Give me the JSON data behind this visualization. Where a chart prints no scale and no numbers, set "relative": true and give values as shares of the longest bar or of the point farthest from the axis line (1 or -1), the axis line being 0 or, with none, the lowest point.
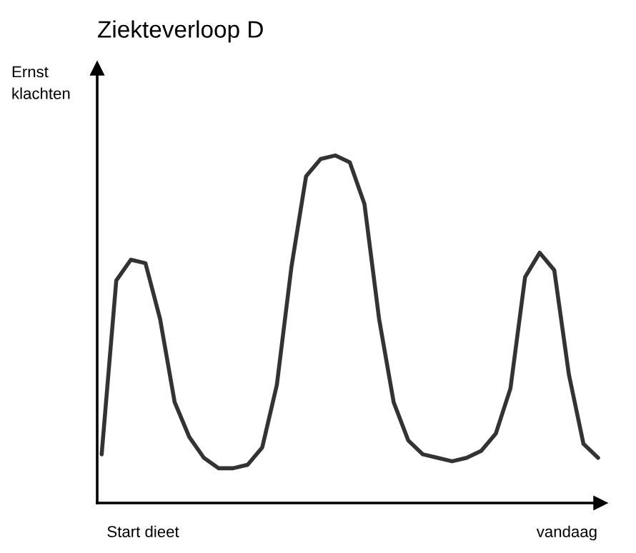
{
  "chart_data": {
    "type": "line",
    "title": "Ziekteverloop D",
    "ylabel": "Ernst\nklachten",
    "relative": true,
    "annotations": [
      "Start dieet",
      "vandaag"
    ],
    "categories": [
      null,
      null,
      null,
      null,
      null,
      null,
      null,
      null,
      null,
      null,
      null,
      null,
      null,
      null,
      null,
      null,
      null,
      null,
      null,
      null,
      null,
      null,
      null,
      null,
      null,
      null,
      null,
      null,
      null,
      null,
      null,
      null,
      null,
      null,
      null
    ],
    "series": [
      {
        "color": "#333333",
        "values": [
          0.14,
          0.64,
          0.7,
          0.69,
          0.53,
          0.29,
          0.19,
          0.13,
          0.1,
          0.1,
          0.11,
          0.16,
          0.34,
          0.68,
          0.94,
          0.99,
          1.0,
          0.98,
          0.86,
          0.53,
          0.29,
          0.18,
          0.14,
          0.13,
          0.12,
          0.13,
          0.15,
          0.2,
          0.33,
          0.65,
          0.72,
          0.67,
          0.37,
          0.17,
          0.13
        ]
      }
    ],
    "grid": false,
    "legend": false,
    "marker": "none",
    "line_style": "solid"
  }
}
